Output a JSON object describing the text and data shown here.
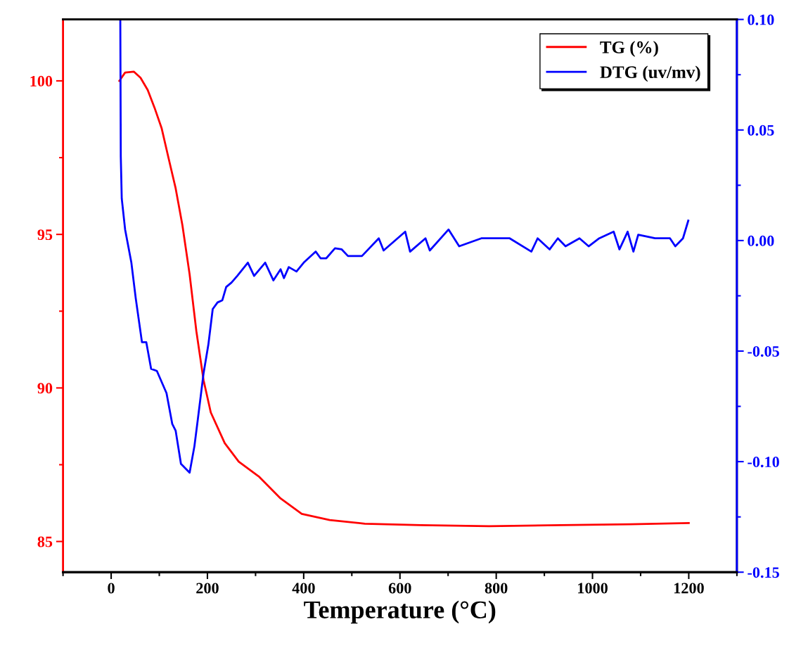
{
  "chart_data": {
    "type": "line",
    "xlabel": "Temperature (°C)",
    "xlim": [
      -100,
      1300
    ],
    "xticks": [
      0,
      200,
      400,
      600,
      800,
      1000,
      1200
    ],
    "ylim": [
      84,
      102
    ],
    "yticks": [
      85,
      90,
      95,
      100
    ],
    "y2lim": [
      -0.15,
      0.1
    ],
    "y2ticks": [
      {
        "value": -0.15,
        "label": "-0.15"
      },
      {
        "value": -0.1,
        "label": "-0.10"
      },
      {
        "value": -0.05,
        "label": "-0.05"
      },
      {
        "value": 0.0,
        "label": "0.00"
      },
      {
        "value": 0.05,
        "label": "0.05"
      },
      {
        "value": 0.1,
        "label": "0.10"
      }
    ],
    "legend": "top right",
    "grid": false,
    "marker": "none",
    "line_style": "solid",
    "series": [
      {
        "name": "TG (%)",
        "color": "#ff0000",
        "x": [
          17,
          29,
          47,
          61,
          76,
          90,
          105,
          119,
          134,
          148,
          163,
          177,
          192,
          207,
          236,
          265,
          308,
          352,
          396,
          454,
          527,
          643,
          785,
          934,
          1079,
          1200
        ],
        "values": [
          100.0,
          100.27,
          100.3,
          100.1,
          99.7,
          99.13,
          98.45,
          97.5,
          96.5,
          95.3,
          93.7,
          91.85,
          90.25,
          89.2,
          88.2,
          87.6,
          87.1,
          86.4,
          85.9,
          85.7,
          85.58,
          85.53,
          85.5,
          85.53,
          85.56,
          85.6
        ]
      },
      {
        "name": "DTG (uv/mv)",
        "color": "#0000ff",
        "axis": "y2",
        "x": [
          19,
          20,
          22,
          29,
          42,
          51,
          64,
          73,
          83,
          95,
          115,
          127,
          134,
          145,
          163,
          173,
          180,
          192,
          202,
          211,
          221,
          231,
          239,
          250,
          262,
          284,
          297,
          320,
          337,
          352,
          359,
          369,
          385,
          400,
          425,
          435,
          447,
          465,
          479,
          492,
          521,
          556,
          566,
          611,
          621,
          653,
          662,
          701,
          723,
          769,
          828,
          873,
          886,
          911,
          928,
          944,
          973,
          992,
          1014,
          1044,
          1056,
          1073,
          1085,
          1095,
          1130,
          1161,
          1172,
          1188,
          1199
        ],
        "values": [
          0.1,
          0.038,
          0.019,
          0.005,
          -0.01,
          -0.026,
          -0.046,
          -0.046,
          -0.058,
          -0.059,
          -0.069,
          -0.083,
          -0.086,
          -0.101,
          -0.105,
          -0.093,
          -0.081,
          -0.06,
          -0.047,
          -0.031,
          -0.028,
          -0.027,
          -0.021,
          -0.019,
          -0.016,
          -0.01,
          -0.016,
          -0.01,
          -0.018,
          -0.013,
          -0.017,
          -0.012,
          -0.014,
          -0.01,
          -0.005,
          -0.008,
          -0.008,
          -0.0035,
          -0.004,
          -0.007,
          -0.007,
          0.001,
          -0.0045,
          0.004,
          -0.005,
          0.001,
          -0.0045,
          0.005,
          -0.0026,
          0.001,
          0.001,
          -0.005,
          0.001,
          -0.004,
          0.001,
          -0.0026,
          0.001,
          -0.0026,
          0.001,
          0.004,
          -0.004,
          0.004,
          -0.005,
          0.0026,
          0.001,
          0.001,
          -0.0026,
          0.001,
          0.009
        ]
      }
    ]
  }
}
